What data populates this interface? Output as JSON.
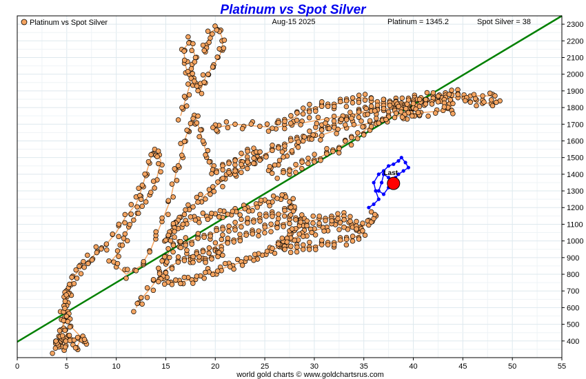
{
  "chart_data": {
    "type": "scatter",
    "title": "Platinum vs Spot Silver",
    "date": "Aug-15  2025",
    "legend_label": "Platinum vs Spot Silver",
    "platinum_label": "Platinum = 1345.2",
    "silver_label": "Spot Silver = 38",
    "footer": "world gold charts © www.goldchartsrus.com",
    "last_label": "Last",
    "xlim": [
      0,
      55
    ],
    "ylim": [
      300,
      2350
    ],
    "x_ticks": [
      0,
      5,
      10,
      15,
      20,
      25,
      30,
      35,
      40,
      45,
      50,
      55
    ],
    "y_ticks": [
      400,
      500,
      600,
      700,
      800,
      900,
      1000,
      1100,
      1200,
      1300,
      1400,
      1500,
      1600,
      1700,
      1800,
      1900,
      2000,
      2100,
      2200,
      2300
    ],
    "grid": true,
    "legend_position": "top-left",
    "colors": {
      "history": "#f4a460",
      "history_edge": "#000000",
      "history_line": "#f4a460",
      "recent": "#0000ff",
      "last": "#ff0000",
      "trend": "#008000",
      "title": "#0000ee"
    },
    "trendline": {
      "x": [
        0,
        55
      ],
      "y": [
        395,
        2350
      ]
    },
    "last_point": {
      "x": 38,
      "y": 1345.2
    },
    "history_paths": [
      {
        "name": "early-cluster",
        "points": [
          [
            3.8,
            350
          ],
          [
            4.2,
            420
          ],
          [
            4.5,
            360
          ],
          [
            5.0,
            450
          ],
          [
            4.8,
            380
          ],
          [
            5.5,
            410
          ],
          [
            6.0,
            360
          ],
          [
            6.5,
            420
          ],
          [
            7.0,
            390
          ],
          [
            5.2,
            500
          ],
          [
            4.6,
            560
          ],
          [
            5.0,
            620
          ],
          [
            4.8,
            680
          ],
          [
            5.3,
            720
          ],
          [
            5.0,
            600
          ],
          [
            4.7,
            520
          ],
          [
            4.2,
            380
          ],
          [
            3.9,
            360
          ],
          [
            4.4,
            470
          ],
          [
            5.1,
            540
          ]
        ]
      },
      {
        "name": "ramp-2008",
        "points": [
          [
            5.2,
            700
          ],
          [
            5.6,
            780
          ],
          [
            6.2,
            820
          ],
          [
            6.8,
            860
          ],
          [
            7.5,
            900
          ],
          [
            8.2,
            940
          ],
          [
            9.0,
            980
          ],
          [
            10.0,
            1050
          ],
          [
            11.0,
            1150
          ],
          [
            12.0,
            1220
          ],
          [
            12.5,
            1300
          ],
          [
            13.0,
            1400
          ],
          [
            13.5,
            1500
          ],
          [
            14.0,
            1550
          ],
          [
            14.5,
            1480
          ],
          [
            14.0,
            1350
          ],
          [
            13.0,
            1250
          ],
          [
            12.0,
            1150
          ],
          [
            11.0,
            1050
          ],
          [
            10.5,
            950
          ],
          [
            9.5,
            880
          ],
          [
            11.0,
            800
          ],
          [
            12.5,
            850
          ],
          [
            13.5,
            950
          ],
          [
            14.5,
            1100
          ],
          [
            15.5,
            1250
          ],
          [
            16.0,
            1400
          ],
          [
            16.5,
            1500
          ],
          [
            17.0,
            1620
          ],
          [
            17.5,
            1700
          ],
          [
            18.0,
            1750
          ],
          [
            18.5,
            1650
          ],
          [
            19.0,
            1550
          ],
          [
            19.5,
            1450
          ],
          [
            20.0,
            1420
          ],
          [
            21.0,
            1450
          ],
          [
            22.0,
            1480
          ],
          [
            23.0,
            1520
          ],
          [
            24.0,
            1540
          ],
          [
            24.5,
            1500
          ],
          [
            23.0,
            1450
          ],
          [
            21.5,
            1400
          ],
          [
            20.5,
            1350
          ],
          [
            19.5,
            1300
          ],
          [
            18.5,
            1250
          ],
          [
            17.5,
            1200
          ],
          [
            16.5,
            1150
          ],
          [
            16.0,
            1100
          ]
        ]
      },
      {
        "name": "spike-2011",
        "points": [
          [
            16.5,
            1750
          ],
          [
            17.0,
            1850
          ],
          [
            17.5,
            1950
          ],
          [
            17.0,
            2050
          ],
          [
            16.8,
            2150
          ],
          [
            17.5,
            2200
          ],
          [
            18.0,
            2100
          ],
          [
            17.6,
            2000
          ],
          [
            18.0,
            1950
          ],
          [
            18.5,
            1900
          ],
          [
            19.0,
            1980
          ],
          [
            19.8,
            2050
          ],
          [
            20.5,
            2120
          ],
          [
            20.8,
            2200
          ],
          [
            20.3,
            2280
          ],
          [
            19.5,
            2250
          ],
          [
            19.0,
            2150
          ]
        ]
      },
      {
        "name": "mid-band",
        "points": [
          [
            12.0,
            600
          ],
          [
            12.5,
            650
          ],
          [
            13.5,
            720
          ],
          [
            14.5,
            800
          ],
          [
            15.5,
            850
          ],
          [
            16.5,
            880
          ],
          [
            17.5,
            900
          ],
          [
            18.5,
            920
          ],
          [
            19.5,
            950
          ],
          [
            20.5,
            980
          ],
          [
            21.5,
            1000
          ],
          [
            22.5,
            1020
          ],
          [
            23.5,
            1040
          ],
          [
            24.5,
            1060
          ],
          [
            25.5,
            1080
          ],
          [
            26.5,
            1100
          ],
          [
            27.5,
            1120
          ],
          [
            28.5,
            1140
          ],
          [
            29.0,
            1100
          ],
          [
            28.0,
            1050
          ],
          [
            27.0,
            980
          ],
          [
            26.0,
            950
          ],
          [
            25.0,
            930
          ],
          [
            24.0,
            900
          ],
          [
            23.0,
            880
          ],
          [
            22.0,
            860
          ],
          [
            21.0,
            840
          ],
          [
            20.0,
            820
          ],
          [
            19.0,
            800
          ],
          [
            18.0,
            780
          ],
          [
            17.0,
            760
          ],
          [
            16.0,
            750
          ],
          [
            15.0,
            760
          ],
          [
            14.5,
            780
          ]
        ]
      },
      {
        "name": "low-band",
        "points": [
          [
            14.5,
            860
          ],
          [
            15.0,
            900
          ],
          [
            15.5,
            950
          ],
          [
            16.5,
            980
          ],
          [
            17.5,
            1000
          ],
          [
            18.5,
            1020
          ],
          [
            19.5,
            1040
          ],
          [
            20.5,
            1060
          ],
          [
            21.5,
            1080
          ],
          [
            22.5,
            1100
          ],
          [
            23.5,
            1120
          ],
          [
            24.5,
            1140
          ],
          [
            25.5,
            1150
          ],
          [
            26.5,
            1160
          ],
          [
            27.5,
            1180
          ],
          [
            28.0,
            1200
          ],
          [
            27.5,
            1250
          ],
          [
            26.5,
            1260
          ],
          [
            25.5,
            1240
          ],
          [
            24.5,
            1220
          ],
          [
            23.5,
            1200
          ],
          [
            22.5,
            1180
          ],
          [
            21.5,
            1170
          ],
          [
            20.5,
            1160
          ],
          [
            19.5,
            1150
          ],
          [
            18.5,
            1140
          ],
          [
            17.5,
            1120
          ],
          [
            16.5,
            1100
          ],
          [
            15.5,
            1060
          ],
          [
            15.0,
            1000
          ],
          [
            15.5,
            1050
          ],
          [
            16.5,
            980
          ],
          [
            17.5,
            900
          ],
          [
            18.5,
            880
          ],
          [
            19.5,
            900
          ],
          [
            20.5,
            930
          ]
        ]
      },
      {
        "name": "recent-band-low",
        "points": [
          [
            26.0,
            980
          ],
          [
            27.0,
            960
          ],
          [
            28.0,
            950
          ],
          [
            29.0,
            960
          ],
          [
            30.0,
            970
          ],
          [
            31.0,
            980
          ],
          [
            32.0,
            990
          ],
          [
            33.0,
            1000
          ],
          [
            34.0,
            1020
          ],
          [
            35.0,
            1050
          ],
          [
            34.0,
            1080
          ],
          [
            33.0,
            1090
          ],
          [
            32.0,
            1100
          ],
          [
            31.0,
            1080
          ],
          [
            30.0,
            1060
          ],
          [
            29.0,
            1040
          ],
          [
            28.0,
            1020
          ],
          [
            27.0,
            1000
          ],
          [
            26.5,
            990
          ],
          [
            28.5,
            1100
          ],
          [
            29.5,
            1120
          ],
          [
            30.5,
            1130
          ],
          [
            31.5,
            1140
          ],
          [
            32.5,
            1150
          ],
          [
            33.5,
            1130
          ],
          [
            34.5,
            1080
          ],
          [
            35.5,
            1100
          ],
          [
            36.0,
            1150
          ]
        ]
      },
      {
        "name": "upper-band",
        "points": [
          [
            21.0,
            1400
          ],
          [
            22.0,
            1420
          ],
          [
            23.0,
            1450
          ],
          [
            24.0,
            1480
          ],
          [
            25.0,
            1520
          ],
          [
            26.0,
            1550
          ],
          [
            27.0,
            1580
          ],
          [
            28.0,
            1600
          ],
          [
            29.0,
            1620
          ],
          [
            30.0,
            1650
          ],
          [
            31.0,
            1680
          ],
          [
            32.0,
            1700
          ],
          [
            33.0,
            1720
          ],
          [
            34.0,
            1750
          ],
          [
            35.0,
            1780
          ],
          [
            36.0,
            1800
          ],
          [
            37.0,
            1820
          ],
          [
            38.0,
            1840
          ],
          [
            39.0,
            1830
          ],
          [
            40.0,
            1850
          ],
          [
            41.0,
            1860
          ],
          [
            42.0,
            1870
          ],
          [
            43.0,
            1880
          ],
          [
            44.0,
            1890
          ],
          [
            45.0,
            1860
          ],
          [
            46.0,
            1840
          ],
          [
            47.0,
            1820
          ],
          [
            48.5,
            1840
          ],
          [
            48.0,
            1870
          ],
          [
            46.0,
            1870
          ],
          [
            44.0,
            1860
          ],
          [
            42.0,
            1840
          ],
          [
            40.0,
            1820
          ],
          [
            38.0,
            1800
          ],
          [
            36.0,
            1780
          ],
          [
            34.0,
            1760
          ],
          [
            32.0,
            1740
          ],
          [
            30.0,
            1720
          ],
          [
            28.0,
            1700
          ],
          [
            26.0,
            1680
          ],
          [
            24.0,
            1690
          ],
          [
            22.0,
            1700
          ],
          [
            20.0,
            1680
          ]
        ]
      },
      {
        "name": "upper-band-2",
        "points": [
          [
            26.5,
            1400
          ],
          [
            27.5,
            1420
          ],
          [
            28.5,
            1450
          ],
          [
            29.5,
            1480
          ],
          [
            30.5,
            1500
          ],
          [
            31.5,
            1530
          ],
          [
            32.5,
            1560
          ],
          [
            33.5,
            1600
          ],
          [
            34.5,
            1640
          ],
          [
            35.5,
            1680
          ],
          [
            36.5,
            1720
          ],
          [
            37.5,
            1760
          ],
          [
            38.5,
            1790
          ],
          [
            39.5,
            1810
          ],
          [
            40.5,
            1830
          ],
          [
            41.5,
            1840
          ],
          [
            42.5,
            1850
          ],
          [
            43.5,
            1830
          ],
          [
            44.0,
            1790
          ],
          [
            43.0,
            1780
          ],
          [
            41.0,
            1770
          ],
          [
            39.0,
            1760
          ],
          [
            37.0,
            1720
          ],
          [
            35.0,
            1700
          ],
          [
            33.0,
            1680
          ],
          [
            31.0,
            1640
          ],
          [
            29.0,
            1600
          ],
          [
            27.5,
            1540
          ],
          [
            26.5,
            1480
          ],
          [
            25.5,
            1430
          ]
        ]
      },
      {
        "name": "upper-band-3",
        "points": [
          [
            26.0,
            1700
          ],
          [
            27.0,
            1720
          ],
          [
            28.0,
            1740
          ],
          [
            29.0,
            1780
          ],
          [
            30.0,
            1800
          ],
          [
            31.0,
            1810
          ],
          [
            32.0,
            1820
          ],
          [
            33.0,
            1830
          ],
          [
            34.0,
            1850
          ],
          [
            35.0,
            1860
          ],
          [
            36.0,
            1840
          ],
          [
            37.0,
            1820
          ],
          [
            38.0,
            1810
          ],
          [
            39.5,
            1820
          ],
          [
            40.5,
            1780
          ],
          [
            40.0,
            1760
          ],
          [
            39.0,
            1750
          ]
        ]
      }
    ],
    "recent_path": [
      [
        35.5,
        1200
      ],
      [
        36.0,
        1220
      ],
      [
        36.5,
        1250
      ],
      [
        36.2,
        1300
      ],
      [
        36.0,
        1350
      ],
      [
        36.5,
        1400
      ],
      [
        37.0,
        1420
      ],
      [
        37.5,
        1450
      ],
      [
        38.0,
        1460
      ],
      [
        38.5,
        1480
      ],
      [
        38.8,
        1500
      ],
      [
        39.2,
        1470
      ],
      [
        39.5,
        1440
      ],
      [
        39.0,
        1420
      ],
      [
        38.5,
        1400
      ],
      [
        38.2,
        1380
      ],
      [
        37.8,
        1360
      ],
      [
        37.5,
        1380
      ],
      [
        37.0,
        1400
      ],
      [
        36.8,
        1350
      ],
      [
        36.5,
        1300
      ],
      [
        37.0,
        1280
      ],
      [
        37.5,
        1320
      ],
      [
        38.0,
        1345.2
      ]
    ]
  }
}
